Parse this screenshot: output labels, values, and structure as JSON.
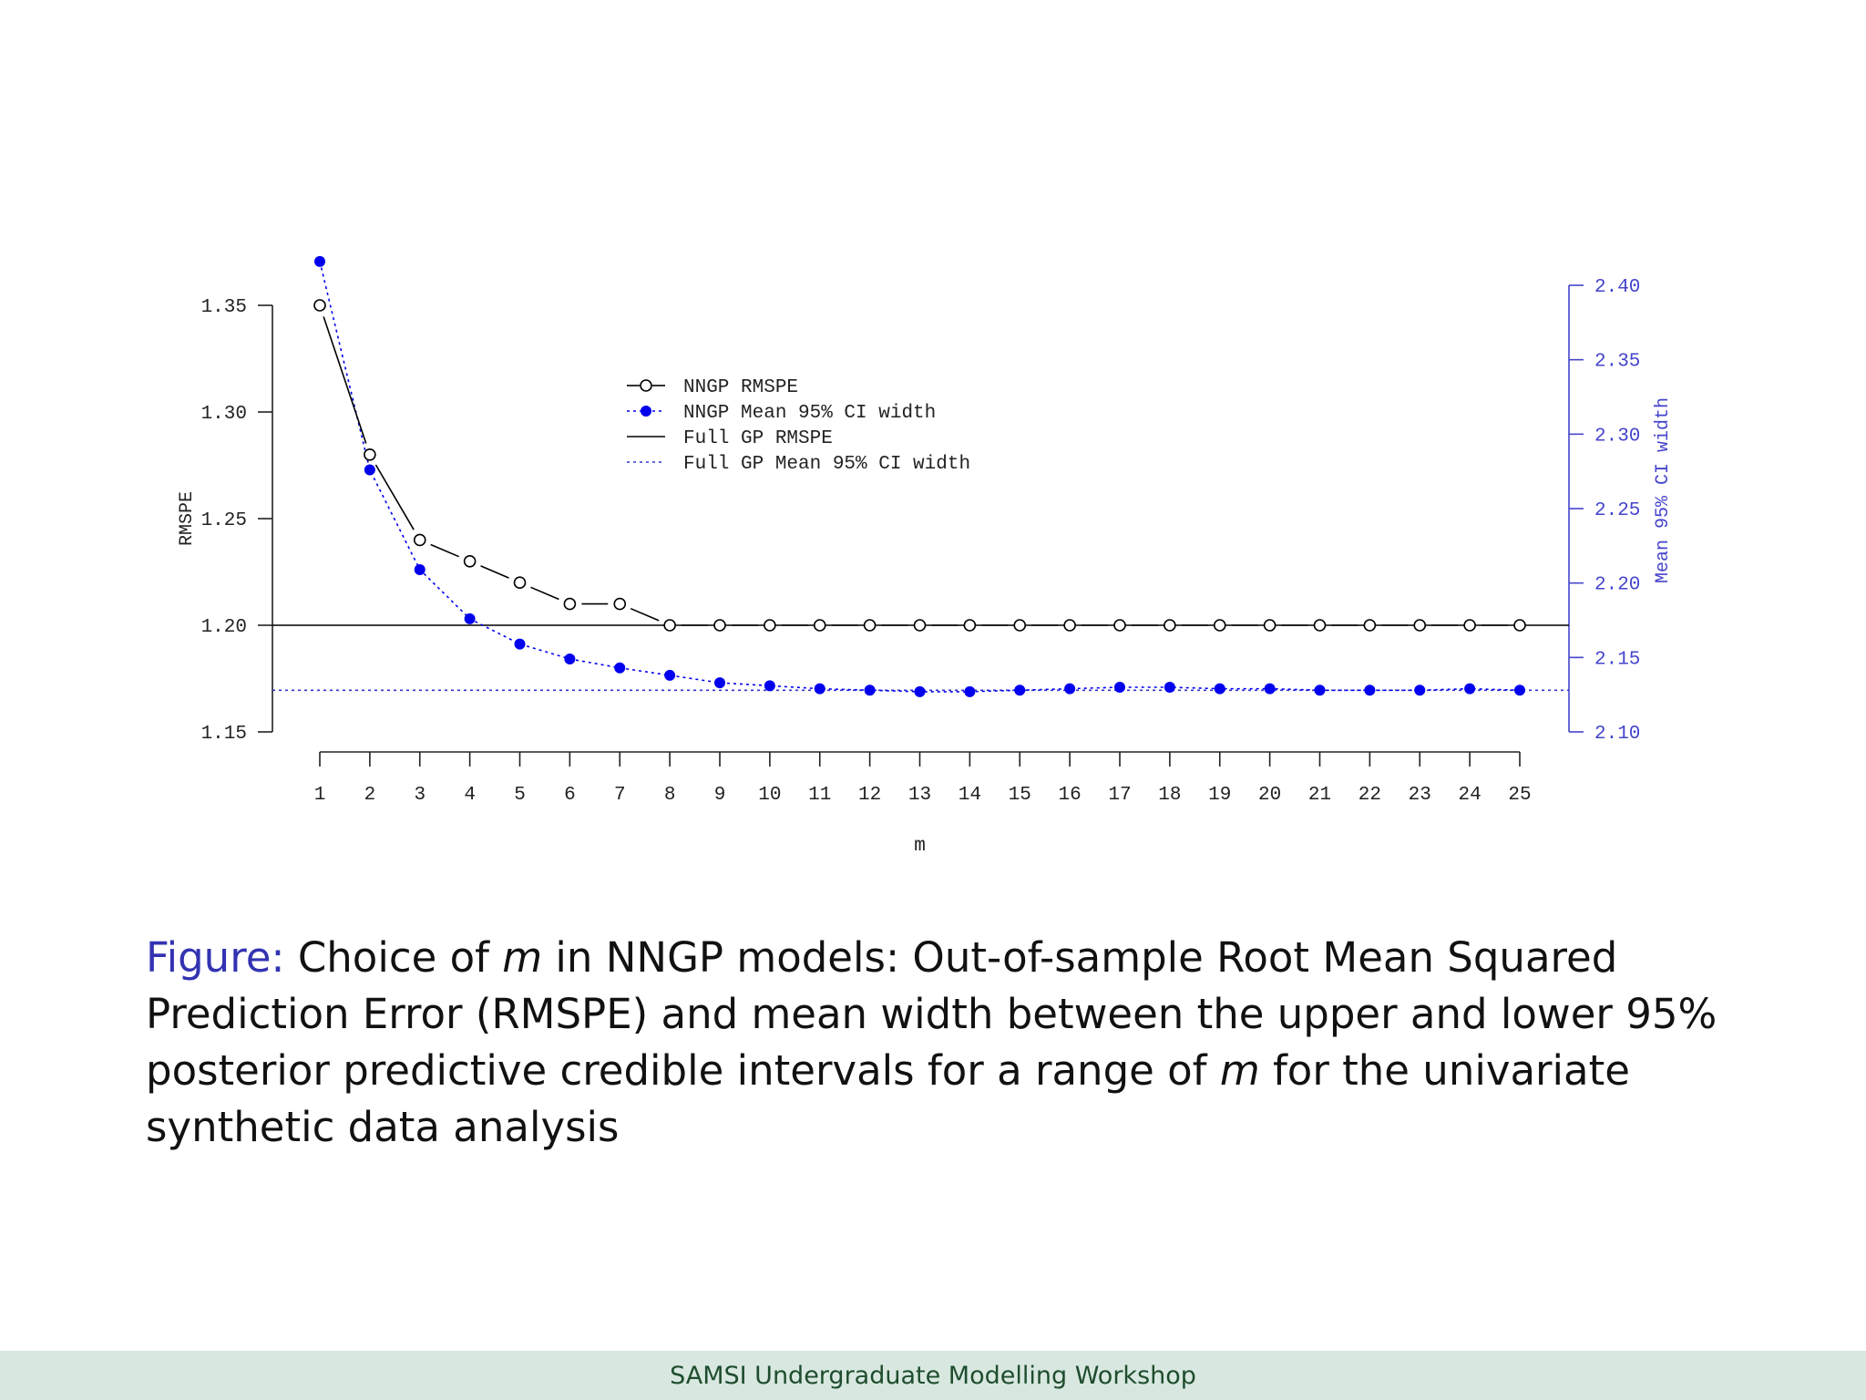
{
  "chart_data": {
    "type": "line",
    "x": [
      1,
      2,
      3,
      4,
      5,
      6,
      7,
      8,
      9,
      10,
      11,
      12,
      13,
      14,
      15,
      16,
      17,
      18,
      19,
      20,
      21,
      22,
      23,
      24,
      25
    ],
    "xlabel": "m",
    "xlim": [
      1,
      25
    ],
    "left_axis": {
      "label": "RMSPE",
      "ylim": [
        1.15,
        1.35
      ],
      "ticks": [
        "1.15",
        "1.20",
        "1.25",
        "1.30",
        "1.35"
      ]
    },
    "right_axis": {
      "label": "Mean 95% CI width",
      "ylim": [
        2.1,
        2.4
      ],
      "ticks": [
        "2.10",
        "2.15",
        "2.20",
        "2.25",
        "2.30",
        "2.35",
        "2.40"
      ]
    },
    "series": [
      {
        "name": "NNGP RMSPE",
        "axis": "left",
        "style": "open-circle-solid",
        "color": "#000000",
        "values": [
          1.35,
          1.28,
          1.24,
          1.23,
          1.22,
          1.21,
          1.21,
          1.2,
          1.2,
          1.2,
          1.2,
          1.2,
          1.2,
          1.2,
          1.2,
          1.2,
          1.2,
          1.2,
          1.2,
          1.2,
          1.2,
          1.2,
          1.2,
          1.2,
          1.2
        ]
      },
      {
        "name": "NNGP Mean 95% CI width",
        "axis": "right",
        "style": "filled-circle-dotted",
        "color": "#0000ee",
        "values": [
          2.416,
          2.276,
          2.209,
          2.176,
          2.159,
          2.149,
          2.143,
          2.138,
          2.133,
          2.131,
          2.129,
          2.128,
          2.127,
          2.127,
          2.128,
          2.129,
          2.13,
          2.13,
          2.129,
          2.129,
          2.128,
          2.128,
          2.128,
          2.129,
          2.128
        ]
      },
      {
        "name": "Full GP RMSPE",
        "axis": "left",
        "style": "solid-hline",
        "color": "#000000",
        "value": 1.2
      },
      {
        "name": "Full GP Mean 95% CI width",
        "axis": "right",
        "style": "dotted-hline",
        "color": "#3333cc",
        "value": 2.128
      }
    ],
    "legend_position": "top-center"
  },
  "caption": {
    "label": "Figure:",
    "part1": " Choice of ",
    "m1": "m",
    "part2": " in NNGP models: Out-of-sample Root Mean Squared Prediction Error (RMSPE) and mean width between the upper and lower 95% posterior predictive credible intervals for a range of ",
    "m2": "m",
    "part3": " for the univariate synthetic data analysis"
  },
  "footer": "SAMSI Undergraduate Modelling Workshop",
  "colors": {
    "right_axis": "#4444cc",
    "nngp_ci": "#0000ee",
    "footer_bg": "#d8e8e0",
    "caption_label": "#3333b2"
  }
}
